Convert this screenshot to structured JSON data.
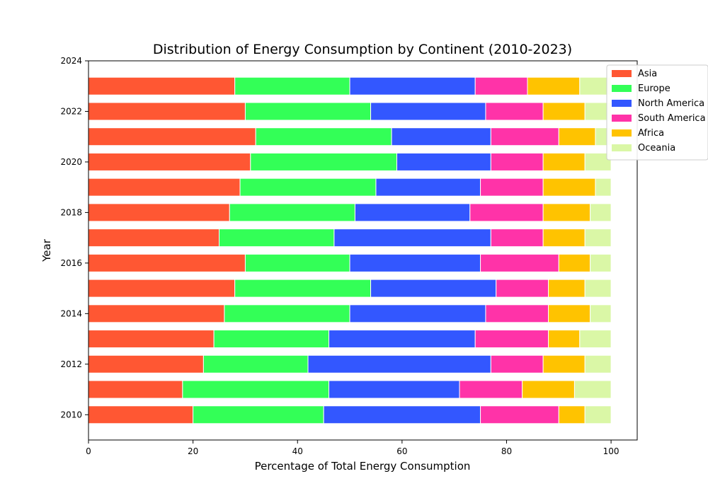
{
  "chart_data": {
    "type": "bar",
    "orientation": "horizontal",
    "stacked": true,
    "title": "Distribution of Energy Consumption by Continent (2010-2023)",
    "xlabel": "Percentage of Total Energy Consumption",
    "ylabel": "Year",
    "xlim": [
      0,
      105
    ],
    "ylim": [
      2009,
      2024
    ],
    "xticks": [
      0,
      20,
      40,
      60,
      80,
      100
    ],
    "yticks": [
      2010,
      2012,
      2014,
      2016,
      2018,
      2020,
      2022,
      2024
    ],
    "legend_position": "top-right",
    "grid": false,
    "categories": [
      2010,
      2011,
      2012,
      2013,
      2014,
      2015,
      2016,
      2017,
      2018,
      2019,
      2020,
      2021,
      2022,
      2023
    ],
    "series": [
      {
        "name": "Asia",
        "color": "#ff5733",
        "values": [
          20,
          18,
          22,
          24,
          26,
          28,
          30,
          25,
          27,
          29,
          31,
          32,
          30,
          28
        ]
      },
      {
        "name": "Europe",
        "color": "#33ff57",
        "values": [
          25,
          28,
          20,
          22,
          24,
          26,
          20,
          22,
          24,
          26,
          28,
          26,
          24,
          22
        ]
      },
      {
        "name": "North America",
        "color": "#3357ff",
        "values": [
          30,
          25,
          35,
          28,
          26,
          24,
          25,
          30,
          22,
          20,
          18,
          19,
          22,
          24
        ]
      },
      {
        "name": "South America",
        "color": "#ff33a8",
        "values": [
          15,
          12,
          10,
          14,
          12,
          10,
          15,
          10,
          14,
          12,
          10,
          13,
          11,
          10
        ]
      },
      {
        "name": "Africa",
        "color": "#ffc300",
        "values": [
          5,
          10,
          8,
          6,
          8,
          7,
          6,
          8,
          9,
          10,
          8,
          7,
          8,
          10
        ]
      },
      {
        "name": "Oceania",
        "color": "#daf7a6",
        "values": [
          5,
          7,
          5,
          6,
          4,
          5,
          4,
          5,
          4,
          3,
          5,
          3,
          5,
          6
        ]
      }
    ]
  }
}
